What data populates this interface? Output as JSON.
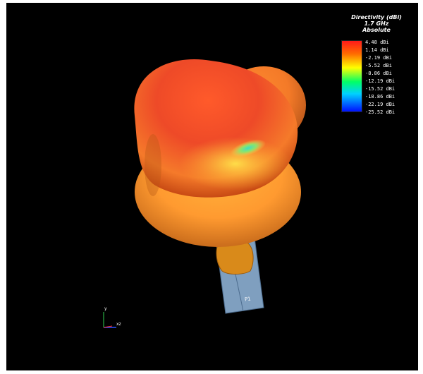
{
  "legend": {
    "title_lines": [
      "Directivity (dBi)",
      "1.7 GHz",
      "Absolute"
    ],
    "ticks": [
      "4.48 dBi",
      "1.14 dBi",
      "-2.19 dBi",
      "-5.52 dBi",
      "-8.86 dBi",
      "-12.19 dBi",
      "-15.52 dBi",
      "-18.86 dBi",
      "-22.19 dBi",
      "-25.52 dBi"
    ],
    "colors": [
      "#ff1a1a",
      "#ff8a00",
      "#ffff00",
      "#00ff66",
      "#00d0ff",
      "#0010ff"
    ]
  },
  "antenna": {
    "port_label": "P1"
  },
  "axis_triad": {
    "y_label": "y",
    "xz_label": "xz"
  },
  "colors": {
    "background": "#000000",
    "pattern_red": "#e8402a",
    "pattern_orange": "#ff9a2e",
    "substrate": "#7f9fbf",
    "patch": "#d98a1a"
  }
}
